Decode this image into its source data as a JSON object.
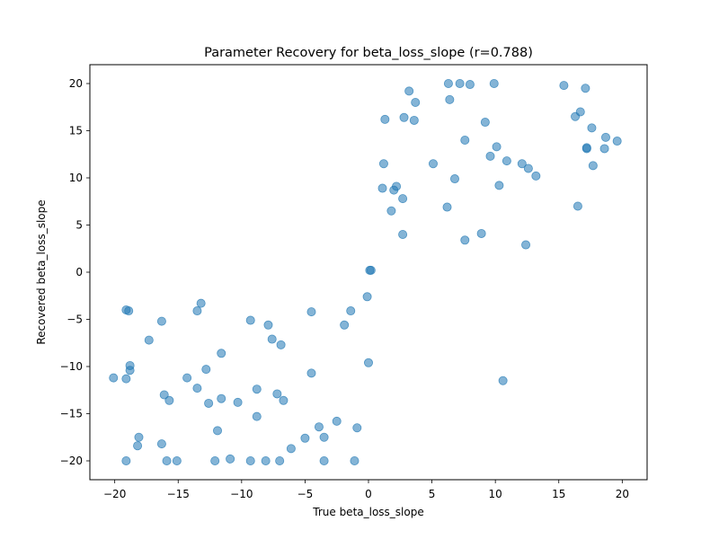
{
  "chart_data": {
    "type": "scatter",
    "title": "Parameter Recovery for beta_loss_slope (r=0.788)",
    "xlabel": "True beta_loss_slope",
    "ylabel": "Recovered beta_loss_slope",
    "xlim": [
      -21.96,
      21.96
    ],
    "ylim": [
      -22,
      22
    ],
    "xticks": [
      -20,
      -15,
      -10,
      -5,
      0,
      5,
      10,
      15,
      20
    ],
    "yticks": [
      -20,
      -15,
      -10,
      -5,
      0,
      5,
      10,
      15,
      20
    ],
    "grid": false,
    "point_color": "#1f77b4",
    "point_alpha": 0.55,
    "points": [
      [
        -20.1,
        -11.2
      ],
      [
        -19.1,
        -20.0
      ],
      [
        -19.1,
        -11.3
      ],
      [
        -19.1,
        -4.0
      ],
      [
        -18.9,
        -4.1
      ],
      [
        -18.8,
        -10.4
      ],
      [
        -18.8,
        -9.9
      ],
      [
        -18.2,
        -18.4
      ],
      [
        -18.1,
        -17.5
      ],
      [
        -17.3,
        -7.2
      ],
      [
        -16.3,
        -18.2
      ],
      [
        -16.3,
        -5.2
      ],
      [
        -16.1,
        -13.0
      ],
      [
        -15.9,
        -20.0
      ],
      [
        -15.7,
        -13.6
      ],
      [
        -15.1,
        -20.0
      ],
      [
        -14.3,
        -11.2
      ],
      [
        -13.5,
        -12.3
      ],
      [
        -13.5,
        -4.1
      ],
      [
        -13.2,
        -3.3
      ],
      [
        -12.8,
        -10.3
      ],
      [
        -12.6,
        -13.9
      ],
      [
        -12.1,
        -20.0
      ],
      [
        -11.9,
        -16.8
      ],
      [
        -11.6,
        -13.4
      ],
      [
        -11.6,
        -8.6
      ],
      [
        -10.9,
        -19.8
      ],
      [
        -10.3,
        -13.8
      ],
      [
        -9.3,
        -20.0
      ],
      [
        -9.3,
        -5.1
      ],
      [
        -8.8,
        -12.4
      ],
      [
        -8.8,
        -15.3
      ],
      [
        -8.1,
        -20.0
      ],
      [
        -7.9,
        -5.6
      ],
      [
        -7.6,
        -7.1
      ],
      [
        -7.2,
        -12.9
      ],
      [
        -7.0,
        -20.0
      ],
      [
        -6.9,
        -7.7
      ],
      [
        -6.7,
        -13.6
      ],
      [
        -6.1,
        -18.7
      ],
      [
        -5.0,
        -17.6
      ],
      [
        -4.5,
        -4.2
      ],
      [
        -4.5,
        -10.7
      ],
      [
        -3.9,
        -16.4
      ],
      [
        -3.5,
        -17.5
      ],
      [
        -3.5,
        -20.0
      ],
      [
        -2.5,
        -15.8
      ],
      [
        -1.9,
        -5.6
      ],
      [
        -1.4,
        -4.1
      ],
      [
        -1.1,
        -20.0
      ],
      [
        -0.9,
        -16.5
      ],
      [
        -0.1,
        -2.6
      ],
      [
        0.0,
        -9.6
      ],
      [
        0.1,
        0.2
      ],
      [
        0.2,
        0.2
      ],
      [
        1.1,
        8.9
      ],
      [
        1.2,
        11.5
      ],
      [
        1.3,
        16.2
      ],
      [
        1.8,
        6.5
      ],
      [
        2.0,
        8.7
      ],
      [
        2.2,
        9.1
      ],
      [
        2.7,
        4.0
      ],
      [
        2.7,
        7.8
      ],
      [
        2.8,
        16.4
      ],
      [
        3.2,
        19.2
      ],
      [
        3.6,
        16.1
      ],
      [
        3.7,
        18.0
      ],
      [
        5.1,
        11.5
      ],
      [
        6.2,
        6.9
      ],
      [
        6.3,
        20.0
      ],
      [
        6.4,
        18.3
      ],
      [
        6.8,
        9.9
      ],
      [
        7.2,
        20.0
      ],
      [
        7.6,
        14.0
      ],
      [
        7.6,
        3.4
      ],
      [
        8.0,
        19.9
      ],
      [
        8.9,
        4.1
      ],
      [
        9.2,
        15.9
      ],
      [
        9.6,
        12.3
      ],
      [
        9.9,
        20.0
      ],
      [
        10.1,
        13.3
      ],
      [
        10.3,
        9.2
      ],
      [
        10.6,
        -11.5
      ],
      [
        10.9,
        11.8
      ],
      [
        12.1,
        11.5
      ],
      [
        12.4,
        2.9
      ],
      [
        12.6,
        11.0
      ],
      [
        13.2,
        10.2
      ],
      [
        15.4,
        19.8
      ],
      [
        16.3,
        16.5
      ],
      [
        16.5,
        7.0
      ],
      [
        16.7,
        17.0
      ],
      [
        17.1,
        19.5
      ],
      [
        17.2,
        13.2
      ],
      [
        17.2,
        13.1
      ],
      [
        17.6,
        15.3
      ],
      [
        17.7,
        11.3
      ],
      [
        18.6,
        13.1
      ],
      [
        18.7,
        14.3
      ],
      [
        19.6,
        13.9
      ]
    ]
  }
}
